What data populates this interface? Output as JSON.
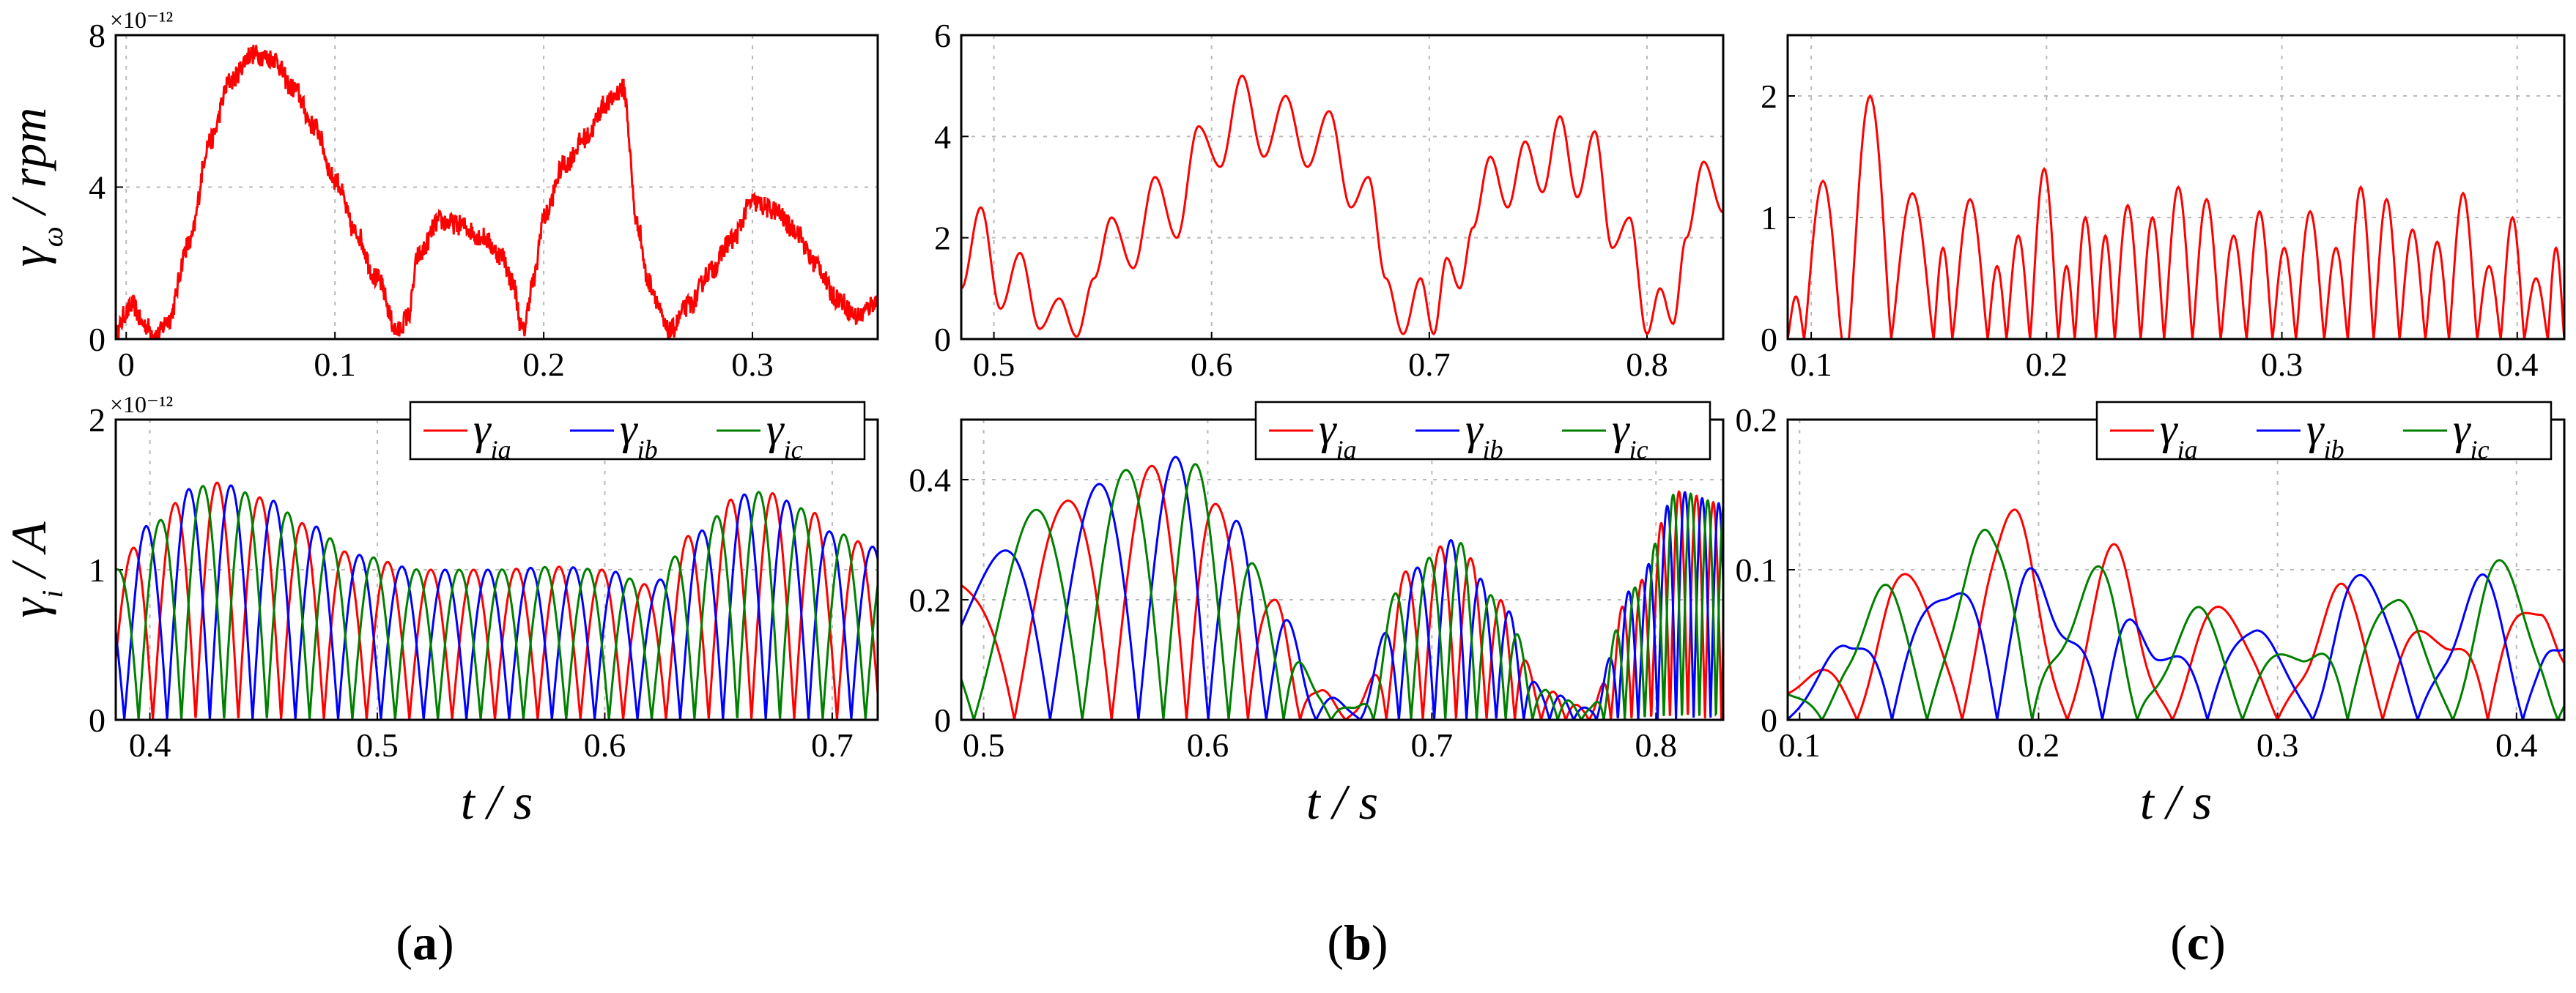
{
  "chart_data": [
    {
      "id": "a-top",
      "type": "line",
      "ylabel_symbol": "γ",
      "ylabel_sub": "ω",
      "ylabel_rest": " / rpm",
      "exponent_label": "×10⁻¹²",
      "xlim": [
        -0.005,
        0.36
      ],
      "ylim": [
        0,
        8
      ],
      "xticks": [
        0,
        0.1,
        0.2,
        0.3
      ],
      "xtick_labels": [
        "0",
        "0.1",
        "0.2",
        "0.3"
      ],
      "yticks": [
        0,
        4,
        8
      ],
      "ytick_labels": [
        "0",
        "4",
        "8"
      ],
      "series": [
        {
          "name": "γω",
          "color": "#ff0000",
          "noisy": true,
          "x": [
            -0.005,
            0.0,
            0.003,
            0.008,
            0.015,
            0.02,
            0.03,
            0.04,
            0.05,
            0.06,
            0.07,
            0.08,
            0.09,
            0.1,
            0.11,
            0.12,
            0.13,
            0.135,
            0.14,
            0.15,
            0.16,
            0.17,
            0.18,
            0.185,
            0.19,
            0.195,
            0.2,
            0.21,
            0.22,
            0.23,
            0.238,
            0.245,
            0.25,
            0.26,
            0.27,
            0.28,
            0.29,
            0.3,
            0.31,
            0.32,
            0.33,
            0.34,
            0.35,
            0.36
          ],
          "y": [
            0.1,
            0.7,
            0.9,
            0.4,
            0.1,
            0.5,
            2.5,
            5.2,
            6.8,
            7.5,
            7.4,
            6.6,
            5.6,
            4.2,
            2.8,
            1.6,
            0.2,
            0.6,
            2.2,
            3.1,
            3.0,
            2.7,
            2.2,
            1.5,
            0.2,
            1.5,
            3.2,
            4.6,
            5.3,
            6.2,
            6.6,
            3.0,
            1.5,
            0.2,
            0.9,
            1.8,
            2.6,
            3.6,
            3.4,
            2.9,
            2.0,
            1.1,
            0.6,
            1.0
          ]
        }
      ]
    },
    {
      "id": "b-top",
      "type": "line",
      "xlim": [
        0.485,
        0.835
      ],
      "ylim": [
        0,
        6
      ],
      "xticks": [
        0.5,
        0.6,
        0.7,
        0.8
      ],
      "xtick_labels": [
        "0.5",
        "0.6",
        "0.7",
        "0.8"
      ],
      "yticks": [
        0,
        2,
        4,
        6
      ],
      "ytick_labels": [
        "0",
        "2",
        "4",
        "6"
      ],
      "series": [
        {
          "name": "γω",
          "color": "#ff0000",
          "noisy": false,
          "x": [
            0.485,
            0.494,
            0.503,
            0.512,
            0.521,
            0.53,
            0.538,
            0.546,
            0.554,
            0.564,
            0.574,
            0.584,
            0.594,
            0.604,
            0.614,
            0.624,
            0.634,
            0.644,
            0.654,
            0.664,
            0.672,
            0.68,
            0.688,
            0.696,
            0.702,
            0.708,
            0.714,
            0.72,
            0.728,
            0.736,
            0.744,
            0.752,
            0.76,
            0.768,
            0.776,
            0.784,
            0.792,
            0.8,
            0.806,
            0.812,
            0.818,
            0.826,
            0.835
          ],
          "y": [
            1.0,
            2.6,
            0.6,
            1.7,
            0.2,
            0.8,
            0.05,
            1.2,
            2.4,
            1.4,
            3.2,
            2.0,
            4.2,
            3.4,
            5.2,
            3.6,
            4.8,
            3.4,
            4.5,
            2.6,
            3.2,
            1.2,
            0.1,
            1.2,
            0.1,
            1.6,
            1.0,
            2.2,
            3.6,
            2.6,
            3.9,
            2.9,
            4.4,
            2.8,
            4.1,
            1.8,
            2.4,
            0.1,
            1.0,
            0.3,
            2.0,
            3.5,
            2.5
          ]
        }
      ]
    },
    {
      "id": "c-top",
      "type": "line",
      "xlim": [
        0.09,
        0.42
      ],
      "ylim": [
        0,
        2.5
      ],
      "xticks": [
        0.1,
        0.2,
        0.3,
        0.4
      ],
      "xtick_labels": [
        "0.1",
        "0.2",
        "0.3",
        "0.4"
      ],
      "yticks": [
        0,
        1,
        2
      ],
      "ytick_labels": [
        "0",
        "1",
        "2"
      ],
      "series": [
        {
          "name": "γω",
          "color": "#ff0000",
          "noisy": false,
          "lobes": [
            [
              0.09,
              0.097,
              0.35
            ],
            [
              0.097,
              0.113,
              1.3
            ],
            [
              0.116,
              0.134,
              2.0
            ],
            [
              0.134,
              0.152,
              1.2
            ],
            [
              0.152,
              0.16,
              0.75
            ],
            [
              0.16,
              0.175,
              1.15
            ],
            [
              0.175,
              0.183,
              0.6
            ],
            [
              0.183,
              0.193,
              0.85
            ],
            [
              0.193,
              0.205,
              1.4
            ],
            [
              0.205,
              0.212,
              0.6
            ],
            [
              0.212,
              0.221,
              1.0
            ],
            [
              0.221,
              0.229,
              0.85
            ],
            [
              0.229,
              0.24,
              1.1
            ],
            [
              0.24,
              0.25,
              1.0
            ],
            [
              0.25,
              0.262,
              1.25
            ],
            [
              0.262,
              0.274,
              1.15
            ],
            [
              0.274,
              0.285,
              0.85
            ],
            [
              0.285,
              0.296,
              1.05
            ],
            [
              0.296,
              0.306,
              0.75
            ],
            [
              0.306,
              0.318,
              1.05
            ],
            [
              0.318,
              0.328,
              0.75
            ],
            [
              0.328,
              0.339,
              1.25
            ],
            [
              0.339,
              0.35,
              1.15
            ],
            [
              0.35,
              0.361,
              0.9
            ],
            [
              0.361,
              0.371,
              0.8
            ],
            [
              0.371,
              0.383,
              1.2
            ],
            [
              0.383,
              0.393,
              0.6
            ],
            [
              0.393,
              0.403,
              1.0
            ],
            [
              0.403,
              0.413,
              0.5
            ],
            [
              0.413,
              0.42,
              0.75
            ]
          ]
        }
      ]
    },
    {
      "id": "a-bottom",
      "type": "line",
      "ylabel_symbol": "γ",
      "ylabel_sub": "i",
      "ylabel_rest": " / A",
      "exponent_label": "×10⁻¹²",
      "xlim": [
        0.385,
        0.72
      ],
      "ylim": [
        0,
        2
      ],
      "xticks": [
        0.4,
        0.5,
        0.6,
        0.7
      ],
      "xtick_labels": [
        "0.4",
        "0.5",
        "0.6",
        "0.7"
      ],
      "yticks": [
        0,
        1,
        2
      ],
      "ytick_labels": [
        "0",
        "1",
        "2"
      ],
      "xlabel": "t / s",
      "legend": [
        "γia",
        "γib",
        "γic"
      ],
      "phase_series": {
        "colors": [
          "#ff0000",
          "#0000ff",
          "#008000"
        ],
        "names": [
          "γia",
          "γib",
          "γic"
        ],
        "period": 0.0188,
        "t0": 0.3825,
        "env_x": [
          0.385,
          0.4,
          0.42,
          0.43,
          0.45,
          0.47,
          0.49,
          0.52,
          0.55,
          0.58,
          0.6,
          0.62,
          0.64,
          0.66,
          0.67,
          0.69,
          0.7,
          0.72
        ],
        "env_y": [
          1.0,
          1.3,
          1.55,
          1.58,
          1.48,
          1.3,
          1.1,
          1.0,
          1.0,
          1.02,
          1.0,
          0.9,
          1.25,
          1.5,
          1.52,
          1.4,
          1.25,
          1.15
        ]
      }
    },
    {
      "id": "b-bottom",
      "type": "line",
      "xlim": [
        0.49,
        0.83
      ],
      "ylim": [
        0,
        0.5
      ],
      "xticks": [
        0.5,
        0.6,
        0.7,
        0.8
      ],
      "xtick_labels": [
        "0.5",
        "0.6",
        "0.7",
        "0.8"
      ],
      "yticks": [
        0,
        0.2,
        0.4
      ],
      "ytick_labels": [
        "0",
        "0.2",
        "0.4"
      ],
      "xlabel": "t / s",
      "legend": [
        "γia",
        "γib",
        "γic"
      ],
      "phase_series": {
        "colors": [
          "#ff0000",
          "#0000ff",
          "#008000"
        ],
        "names": [
          "γia",
          "γib",
          "γic"
        ],
        "period": 0.07,
        "period_end": 0.018,
        "t0": 0.45,
        "env_x": [
          0.49,
          0.53,
          0.57,
          0.59,
          0.61,
          0.63,
          0.65,
          0.665,
          0.69,
          0.71,
          0.73,
          0.75,
          0.77,
          0.79,
          0.81,
          0.83
        ],
        "env_y": [
          0.23,
          0.36,
          0.42,
          0.44,
          0.34,
          0.2,
          0.05,
          0.02,
          0.25,
          0.3,
          0.2,
          0.05,
          0.02,
          0.22,
          0.38,
          0.36
        ]
      }
    },
    {
      "id": "c-bottom",
      "type": "line",
      "xlim": [
        0.095,
        0.42
      ],
      "ylim": [
        0,
        0.2
      ],
      "xticks": [
        0.1,
        0.2,
        0.3,
        0.4
      ],
      "xtick_labels": [
        "0.1",
        "0.2",
        "0.3",
        "0.4"
      ],
      "yticks": [
        0,
        0.1,
        0.2
      ],
      "ytick_labels": [
        "0",
        "0.1",
        "0.2"
      ],
      "xlabel": "t / s",
      "legend": [
        "γia",
        "γib",
        "γic"
      ],
      "phase_series": {
        "colors": [
          "#ff0000",
          "#0000ff",
          "#008000"
        ],
        "names": [
          "γia",
          "γib",
          "γic"
        ],
        "period": 0.044,
        "t0": 0.08,
        "env_x": [
          0.095,
          0.12,
          0.14,
          0.16,
          0.18,
          0.19,
          0.21,
          0.23,
          0.25,
          0.27,
          0.29,
          0.31,
          0.33,
          0.35,
          0.37,
          0.39,
          0.41,
          0.42
        ],
        "env_y": [
          0.02,
          0.05,
          0.1,
          0.08,
          0.13,
          0.14,
          0.06,
          0.12,
          0.04,
          0.08,
          0.06,
          0.04,
          0.1,
          0.08,
          0.05,
          0.11,
          0.07,
          0.05
        ]
      }
    }
  ],
  "captions": [
    {
      "open": "(",
      "letter": "a",
      "close": ")"
    },
    {
      "open": "(",
      "letter": "b",
      "close": ")"
    },
    {
      "open": "(",
      "letter": "c",
      "close": ")"
    }
  ]
}
